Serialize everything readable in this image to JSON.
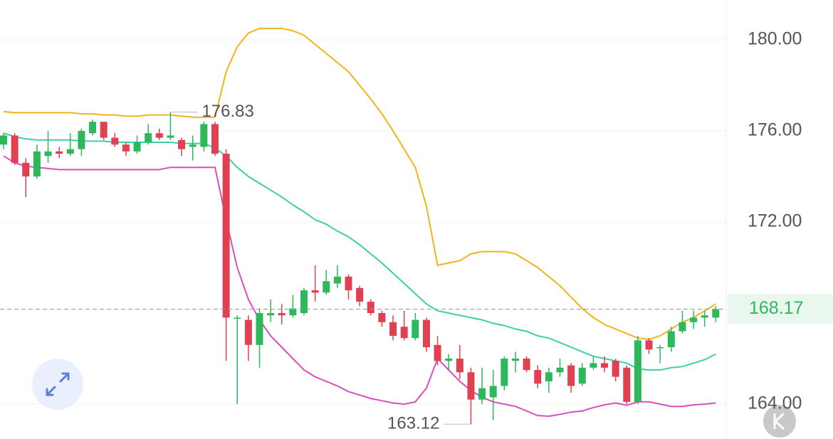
{
  "chart_data": {
    "type": "candlestick",
    "open": [
      175.4,
      175.8,
      174.6,
      174.0,
      174.9,
      175.1,
      175.0,
      175.2,
      175.9,
      176.4,
      175.7,
      175.4,
      175.1,
      175.5,
      175.9,
      175.7,
      175.6,
      175.3,
      175.3,
      176.3,
      175.0,
      167.8,
      167.7,
      166.6,
      167.9,
      168.0,
      167.9,
      168.0,
      169.0,
      168.9,
      169.3,
      169.6,
      169.1,
      168.5,
      168.0,
      167.6,
      167.4,
      166.9,
      167.7,
      166.6,
      165.9,
      166.0,
      165.4,
      164.2,
      164.3,
      164.8,
      165.9,
      166.0,
      165.5,
      165.0,
      165.4,
      165.7,
      164.9,
      165.6,
      165.8,
      165.9,
      165.6,
      164.1,
      166.8,
      166.5,
      166.5,
      167.2,
      167.6,
      167.8,
      167.8
    ],
    "high": [
      175.9,
      175.9,
      174.8,
      175.4,
      176.0,
      175.3,
      175.9,
      176.1,
      176.5,
      176.4,
      175.9,
      175.5,
      175.8,
      176.3,
      176.1,
      176.83,
      175.7,
      175.8,
      176.4,
      176.4,
      175.2,
      167.9,
      167.9,
      168.2,
      168.6,
      168.4,
      168.8,
      169.1,
      170.1,
      169.9,
      170.1,
      169.7,
      169.2,
      168.6,
      168.1,
      167.9,
      168.1,
      168.0,
      167.8,
      167.0,
      166.2,
      166.6,
      165.6,
      165.6,
      165.5,
      166.1,
      166.3,
      166.1,
      165.7,
      165.6,
      166.0,
      165.8,
      165.8,
      166.1,
      166.1,
      166.0,
      165.7,
      167.0,
      166.9,
      166.6,
      167.4,
      168.1,
      168.1,
      168.1,
      168.3
    ],
    "low": [
      175.2,
      174.5,
      173.1,
      173.9,
      174.6,
      174.8,
      174.9,
      174.9,
      175.8,
      175.6,
      175.3,
      174.9,
      175.0,
      175.4,
      175.6,
      175.6,
      174.9,
      174.7,
      175.1,
      174.9,
      165.9,
      164.0,
      165.9,
      165.6,
      167.6,
      167.5,
      167.8,
      167.9,
      168.5,
      168.8,
      169.1,
      168.6,
      168.3,
      167.9,
      167.4,
      166.8,
      166.8,
      166.8,
      166.3,
      165.7,
      165.5,
      165.1,
      163.12,
      164.0,
      163.3,
      164.6,
      165.4,
      165.4,
      164.7,
      164.5,
      165.2,
      164.5,
      164.8,
      165.5,
      165.4,
      165.0,
      164.0,
      164.0,
      166.2,
      165.8,
      166.3,
      167.1,
      167.3,
      167.4,
      167.6
    ],
    "close": [
      175.8,
      174.6,
      174.0,
      175.1,
      175.1,
      175.0,
      175.2,
      176.0,
      176.4,
      175.7,
      175.4,
      175.1,
      175.5,
      175.9,
      175.7,
      175.8,
      175.2,
      175.4,
      176.3,
      175.0,
      167.8,
      167.8,
      166.6,
      168.0,
      168.0,
      167.9,
      168.2,
      169.0,
      168.9,
      169.4,
      169.6,
      169.0,
      168.5,
      168.0,
      167.6,
      167.0,
      166.9,
      167.7,
      166.5,
      165.9,
      166.0,
      165.4,
      164.2,
      164.7,
      164.8,
      166.0,
      166.0,
      165.5,
      164.9,
      165.4,
      165.6,
      164.8,
      165.6,
      165.8,
      165.6,
      165.2,
      164.1,
      166.8,
      166.4,
      166.5,
      167.2,
      167.6,
      167.8,
      167.9,
      168.17
    ],
    "up_color": "#2db85c",
    "down_color": "#e0404f",
    "bands": [
      {
        "color": "#f0b41c",
        "values": [
          176.85,
          176.8,
          176.8,
          176.8,
          176.8,
          176.8,
          176.8,
          176.75,
          176.75,
          176.7,
          176.7,
          176.65,
          176.65,
          176.7,
          176.7,
          176.7,
          176.65,
          176.6,
          176.6,
          176.6,
          178.6,
          179.7,
          180.3,
          180.5,
          180.5,
          180.5,
          180.4,
          180.2,
          179.8,
          179.4,
          179.0,
          178.6,
          178.0,
          177.4,
          176.75,
          176.0,
          175.2,
          174.4,
          172.7,
          170.1,
          170.2,
          170.3,
          170.6,
          170.7,
          170.7,
          170.7,
          170.6,
          170.3,
          170.0,
          169.6,
          169.2,
          168.7,
          168.2,
          167.8,
          167.5,
          167.3,
          167.1,
          166.9,
          166.85,
          167.0,
          167.3,
          167.6,
          167.8,
          168.1,
          168.4
        ]
      },
      {
        "color": "#3ccfaa",
        "values": [
          175.9,
          175.75,
          175.65,
          175.6,
          175.6,
          175.6,
          175.6,
          175.55,
          175.55,
          175.55,
          175.5,
          175.5,
          175.5,
          175.5,
          175.5,
          175.5,
          175.45,
          175.45,
          175.45,
          175.25,
          174.9,
          174.4,
          174.0,
          173.7,
          173.4,
          173.1,
          172.75,
          172.45,
          172.1,
          171.9,
          171.6,
          171.35,
          171.0,
          170.6,
          170.2,
          169.75,
          169.3,
          168.85,
          168.4,
          168.1,
          168.0,
          167.9,
          167.8,
          167.7,
          167.55,
          167.45,
          167.3,
          167.2,
          167.0,
          166.9,
          166.7,
          166.5,
          166.3,
          166.1,
          166.0,
          165.9,
          165.8,
          165.55,
          165.5,
          165.5,
          165.6,
          165.65,
          165.8,
          165.95,
          166.2
        ]
      },
      {
        "color": "#d84fbd",
        "values": [
          174.9,
          174.6,
          174.45,
          174.4,
          174.35,
          174.3,
          174.3,
          174.3,
          174.3,
          174.3,
          174.3,
          174.3,
          174.3,
          174.3,
          174.3,
          174.4,
          174.4,
          174.4,
          174.4,
          174.4,
          172.1,
          170.0,
          168.6,
          167.7,
          167.0,
          166.5,
          166.0,
          165.5,
          165.2,
          165.0,
          164.8,
          164.55,
          164.4,
          164.25,
          164.15,
          164.05,
          164.0,
          164.1,
          164.7,
          166.0,
          165.5,
          165.0,
          164.6,
          164.3,
          164.1,
          164.0,
          163.9,
          163.7,
          163.5,
          163.47,
          163.55,
          163.65,
          163.7,
          163.85,
          163.97,
          164.05,
          163.95,
          164.1,
          164.1,
          164.0,
          163.9,
          163.9,
          163.97,
          164.0,
          164.05
        ]
      }
    ],
    "ylim": [
      162.5,
      181.75
    ],
    "yticks": [
      {
        "value": 164,
        "label": "164.00"
      },
      {
        "value": 172,
        "label": "172.00"
      },
      {
        "value": 176,
        "label": "176.00"
      },
      {
        "value": 180,
        "label": "180.00"
      }
    ],
    "grid": true,
    "last_price_color": "#2db85c"
  }
}
